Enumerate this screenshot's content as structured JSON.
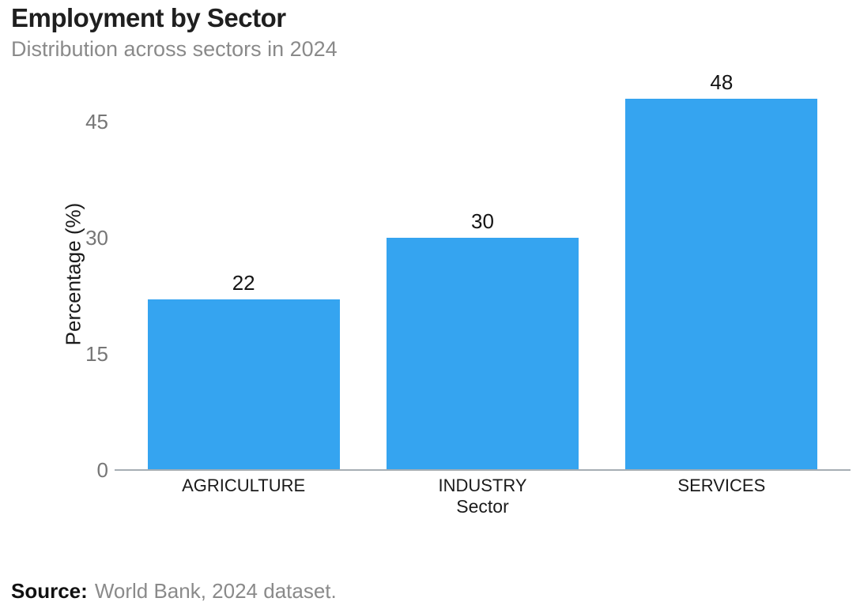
{
  "header": {
    "title": "Employment by Sector",
    "subtitle": "Distribution across sectors in 2024"
  },
  "chart_data": {
    "type": "bar",
    "title": "Employment by Sector",
    "subtitle": "Distribution across sectors in 2024",
    "categories": [
      "AGRICULTURE",
      "INDUSTRY",
      "SERVICES"
    ],
    "values": [
      22,
      30,
      48
    ],
    "xlabel": "Sector",
    "ylabel": "Percentage (%)",
    "yticks": [
      0,
      15,
      30,
      45
    ],
    "ylim": [
      0,
      50.5
    ],
    "grid": false,
    "legend_position": "none",
    "bar_color": "#35a4f0",
    "axis_line_color": "#a6aeb4",
    "value_labels_shown": true
  },
  "footer": {
    "source_label": "Source:",
    "source_text": "World Bank, 2024 dataset."
  }
}
